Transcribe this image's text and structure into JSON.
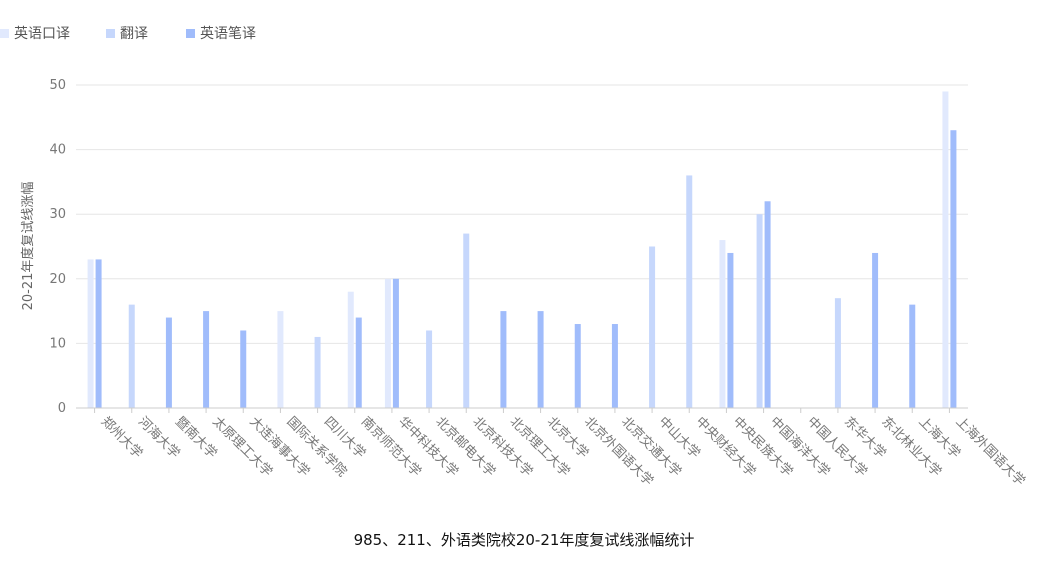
{
  "chart_data": {
    "type": "bar",
    "title": "985、211、外语类院校20-21年度复试线涨幅统计",
    "xlabel": "",
    "ylabel": "20-21年度复试线涨幅",
    "ylim": [
      0,
      50
    ],
    "yticks": [
      0,
      10,
      20,
      30,
      40,
      50
    ],
    "grid": true,
    "legend_position": "top-left",
    "categories": [
      "郑州大学",
      "河海大学",
      "暨南大学",
      "太原理工大学",
      "大连海事大学",
      "国际关系学院",
      "四川大学",
      "南京师范大学",
      "华中科技大学",
      "北京邮电大学",
      "北京科技大学",
      "北京理工大学",
      "北京大学",
      "北京外国语大学",
      "北京交通大学",
      "中山大学",
      "中央财经大学",
      "中央民族大学",
      "中国海洋大学",
      "中国人民大学",
      "东华大学",
      "东北林业大学",
      "上海大学",
      "上海外国语大学"
    ],
    "series": [
      {
        "name": "英语口译",
        "color": "#e1e9fd",
        "values": [
          23,
          null,
          null,
          null,
          null,
          15,
          null,
          18,
          20,
          null,
          null,
          null,
          null,
          null,
          null,
          null,
          null,
          26,
          null,
          null,
          null,
          null,
          null,
          49
        ]
      },
      {
        "name": "翻译",
        "color": "#c6d7fc",
        "values": [
          null,
          16,
          null,
          null,
          null,
          null,
          11,
          null,
          null,
          12,
          27,
          null,
          null,
          null,
          null,
          25,
          36,
          null,
          30,
          null,
          17,
          null,
          null,
          null
        ]
      },
      {
        "name": "英语笔译",
        "color": "#a0bcfb",
        "values": [
          23,
          null,
          14,
          15,
          12,
          null,
          null,
          14,
          20,
          null,
          null,
          15,
          15,
          13,
          13,
          null,
          null,
          24,
          32,
          null,
          null,
          24,
          16,
          43
        ]
      }
    ]
  }
}
